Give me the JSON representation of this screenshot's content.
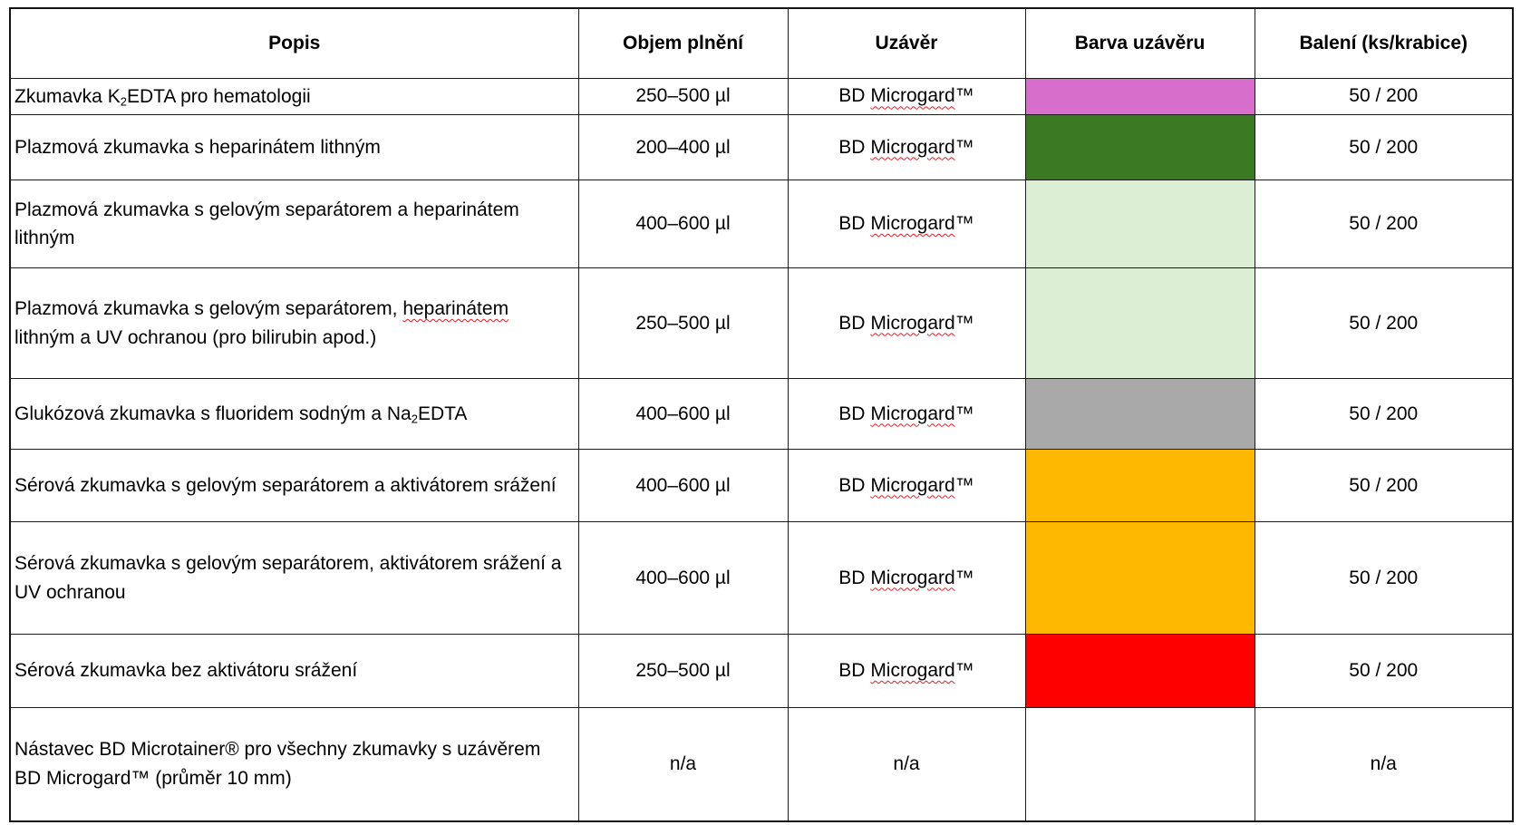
{
  "table": {
    "columns": [
      {
        "label": "Popis"
      },
      {
        "label": "Objem plnění"
      },
      {
        "label": "Uzávěr"
      },
      {
        "label": "Barva uzávěru"
      },
      {
        "label": "Balení (ks/krabice)"
      }
    ],
    "rows": [
      {
        "popis": [
          {
            "t": "Zkumavka K"
          },
          {
            "t": "2",
            "sub": true
          },
          {
            "t": "EDTA pro hematologii"
          }
        ],
        "objem": "250–500 µl",
        "uzaver": [
          {
            "t": "BD "
          },
          {
            "t": "Microgard",
            "sq": true
          },
          {
            "t": "™"
          }
        ],
        "barva": "#D76ECB",
        "baleni": "50 / 200"
      },
      {
        "popis": [
          {
            "t": "Plazmová zkumavka s heparinátem lithným"
          }
        ],
        "objem": "200–400 µl",
        "uzaver": [
          {
            "t": "BD "
          },
          {
            "t": "Microgard",
            "sq": true
          },
          {
            "t": "™"
          }
        ],
        "barva": "#3B7A22",
        "baleni": "50 / 200"
      },
      {
        "popis": [
          {
            "t": "Plazmová zkumavka s gelovým separátorem a heparinátem lithným"
          }
        ],
        "objem": "400–600 µl",
        "uzaver": [
          {
            "t": "BD "
          },
          {
            "t": "Microgard",
            "sq": true
          },
          {
            "t": "™"
          }
        ],
        "barva": "#DCEED3",
        "baleni": "50 / 200"
      },
      {
        "popis": [
          {
            "t": "Plazmová zkumavka s gelovým separátorem, "
          },
          {
            "t": "heparinátem",
            "sq": true
          },
          {
            "t": " lithným a UV ochranou (pro bilirubin apod.)"
          }
        ],
        "objem": "250–500 µl",
        "uzaver": [
          {
            "t": "BD "
          },
          {
            "t": "Microgard",
            "sq": true
          },
          {
            "t": "™"
          }
        ],
        "barva": "#DCEED3",
        "baleni": "50 / 200"
      },
      {
        "popis": [
          {
            "t": "Glukózová zkumavka s fluoridem sodným a Na"
          },
          {
            "t": "2",
            "sub": true
          },
          {
            "t": "EDTA"
          }
        ],
        "objem": "400–600 µl",
        "uzaver": [
          {
            "t": "BD "
          },
          {
            "t": "Microgard",
            "sq": true
          },
          {
            "t": "™"
          }
        ],
        "barva": "#A9A9A9",
        "baleni": "50 / 200"
      },
      {
        "popis": [
          {
            "t": "Sérová zkumavka s gelovým separátorem a aktivátorem srážení"
          }
        ],
        "objem": "400–600 µl",
        "uzaver": [
          {
            "t": "BD "
          },
          {
            "t": "Microgard",
            "sq": true
          },
          {
            "t": "™"
          }
        ],
        "barva": "#FFB800",
        "baleni": "50 / 200"
      },
      {
        "popis": [
          {
            "t": "Sérová zkumavka s gelovým separátorem, aktivátorem srážení a UV ochranou"
          }
        ],
        "objem": "400–600 µl",
        "uzaver": [
          {
            "t": "BD "
          },
          {
            "t": "Microgard",
            "sq": true
          },
          {
            "t": "™"
          }
        ],
        "barva": "#FFB800",
        "baleni": "50 / 200"
      },
      {
        "popis": [
          {
            "t": "Sérová zkumavka bez aktivátoru srážení"
          }
        ],
        "objem": "250–500 µl",
        "uzaver": [
          {
            "t": "BD "
          },
          {
            "t": "Microgard",
            "sq": true
          },
          {
            "t": "™"
          }
        ],
        "barva": "#FF0000",
        "baleni": "50 / 200"
      },
      {
        "popis": [
          {
            "t": "Nástavec BD Microtainer® pro všechny zkumavky s uzávěrem BD Microgard™ (průměr 10 mm)"
          }
        ],
        "objem": "n/a",
        "uzaver": [
          {
            "t": "n/a"
          }
        ],
        "barva": null,
        "baleni": "n/a"
      }
    ]
  },
  "spellcheck_color": "#ED1C24"
}
